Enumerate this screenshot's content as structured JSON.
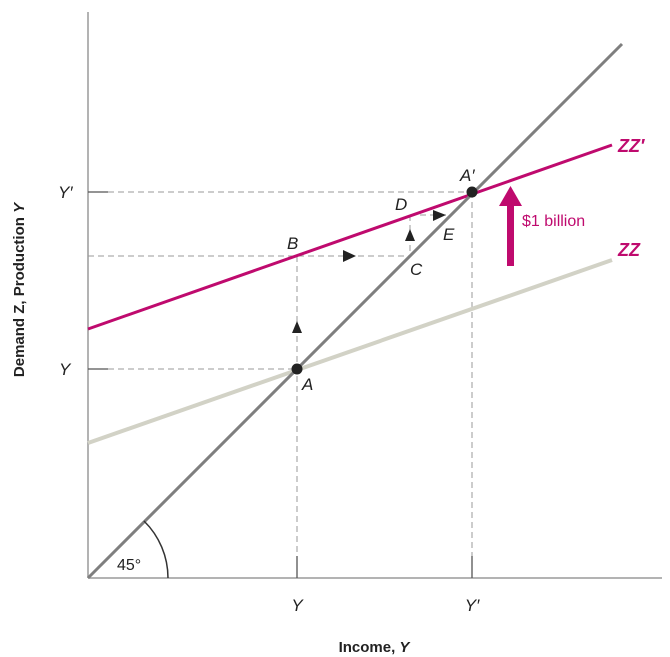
{
  "axes": {
    "x_title_prefix": "Income, ",
    "x_title_var": "Y",
    "y_title_prefix": "Demand Z, Production ",
    "y_title_var": "Y"
  },
  "ticks": {
    "x": [
      "Y",
      "Y′"
    ],
    "y": [
      "Y′",
      "Y"
    ]
  },
  "points": {
    "A": "A",
    "A_prime": "A′",
    "B": "B",
    "C": "C",
    "D": "D",
    "E": "E"
  },
  "lines": {
    "zz_prime": "ZZ′",
    "zz": "ZZ"
  },
  "angle_label": "45°",
  "shift_label": "$1 billion",
  "colors": {
    "magenta": "#bf0a6e",
    "gray_line": "#7f7f7f",
    "light_line": "#d2d2c6",
    "axis": "#9a9a9a"
  }
}
